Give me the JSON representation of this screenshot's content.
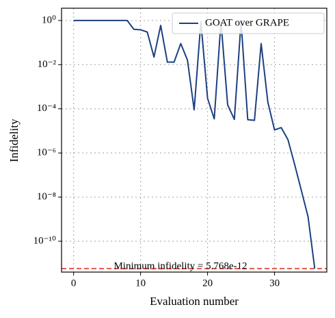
{
  "chart_data": {
    "type": "line",
    "xlabel": "Evaluation number",
    "ylabel": "Infidelity",
    "x": [
      0,
      1,
      2,
      3,
      4,
      5,
      6,
      7,
      8,
      9,
      10,
      11,
      12,
      13,
      14,
      15,
      16,
      17,
      18,
      19,
      20,
      21,
      22,
      23,
      24,
      25,
      26,
      27,
      28,
      29,
      30,
      31,
      32,
      33,
      34,
      35,
      36
    ],
    "series": [
      {
        "name": "GOAT over GRAPE",
        "color": "#1c3f80",
        "values": [
          1,
          1,
          1,
          1,
          1,
          1,
          1,
          1,
          1,
          0.4,
          0.38,
          0.3,
          0.022,
          0.6,
          0.013,
          0.013,
          0.09,
          0.016,
          9e-05,
          0.9,
          0.0003,
          3.5e-05,
          0.9,
          0.00015,
          3.3e-05,
          0.9,
          3.2e-05,
          3e-05,
          0.09,
          0.0002,
          1.1e-05,
          1.4e-05,
          4e-06,
          3e-07,
          2e-08,
          1.3e-09,
          5.768e-12
        ]
      }
    ],
    "xlim": [
      -1.8,
      37.8
    ],
    "xticks": [
      0,
      10,
      20,
      30
    ],
    "ylim": [
      4e-12,
      3.6
    ],
    "log_y": true,
    "yticks": [
      {
        "value": 1,
        "label": "10⁰"
      },
      {
        "value": 0.01,
        "label": "10⁻²"
      },
      {
        "value": 0.0001,
        "label": "10⁻⁴"
      },
      {
        "value": 1e-06,
        "label": "10⁻⁶"
      },
      {
        "value": 1e-08,
        "label": "10⁻⁸"
      },
      {
        "value": 1e-10,
        "label": "10⁻¹⁰"
      }
    ],
    "grid": true,
    "legend": "upper right",
    "hline": {
      "value": 5.768e-12,
      "color": "#e8564a",
      "label": "Minimum infidelity = 5.768e-12"
    }
  }
}
